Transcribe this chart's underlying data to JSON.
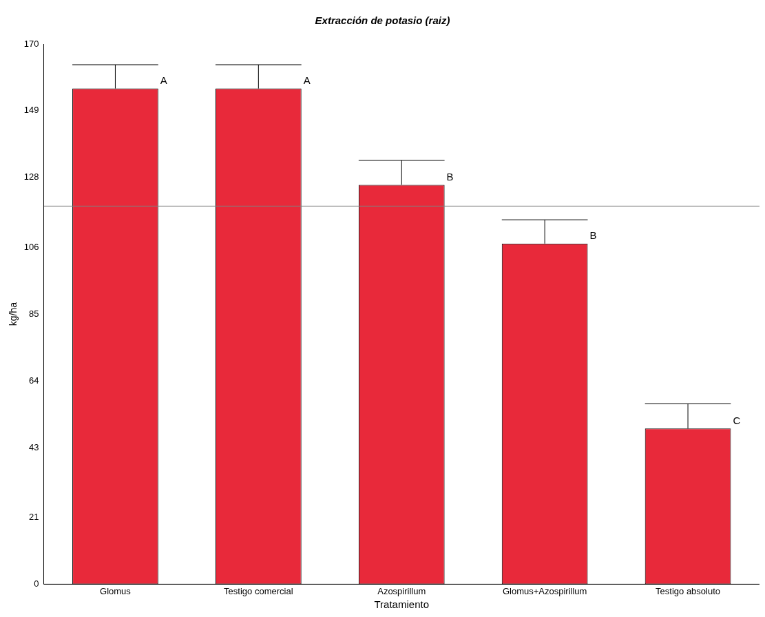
{
  "chart_data": {
    "type": "bar",
    "title": "Extracción de potasio (raiz)",
    "xlabel": "Tratamiento",
    "ylabel": "kg/ha",
    "categories": [
      "Glomus",
      "Testigo comercial",
      "Azospirillum",
      "Glomus+Azospirillum",
      "Testigo absoluto"
    ],
    "values": [
      156,
      156,
      125.7,
      107.2,
      49
    ],
    "errors": [
      [
        156,
        163.5
      ],
      [
        156,
        163.5
      ],
      [
        125.7,
        133.4
      ],
      [
        107.2,
        114.7
      ],
      [
        49,
        56.8
      ]
    ],
    "color": "#e8293a",
    "ylim": [
      0,
      170
    ],
    "yticks": [
      0,
      21,
      43,
      64,
      85,
      106,
      128,
      149,
      170
    ],
    "grid": false,
    "ref_lines": [
      {
        "axis": "y",
        "value": 119,
        "color": "#808080"
      }
    ],
    "annotations": [
      "A",
      "A",
      "B",
      "B",
      "C"
    ]
  }
}
